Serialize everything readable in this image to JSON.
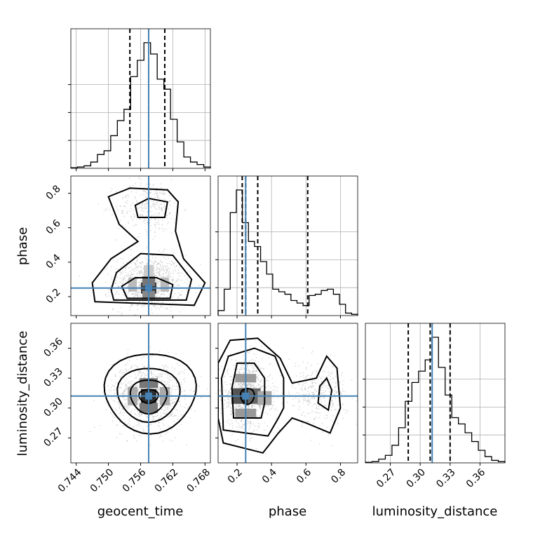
{
  "chart_data": {
    "type": "corner",
    "truth_color": "#4682b4",
    "parameters": [
      {
        "name": "geocent_time",
        "label": "geocent_time",
        "range": [
          0.743,
          0.769
        ],
        "ticks": [
          0.744,
          0.75,
          0.756,
          0.762,
          0.768
        ],
        "tick_labels": [
          "0.744",
          "0.750",
          "0.756",
          "0.762",
          "0.768"
        ],
        "truth": 0.7575,
        "quantiles": [
          0.754,
          0.7575,
          0.7605
        ]
      },
      {
        "name": "phase",
        "label": "phase",
        "range": [
          0.09,
          0.9
        ],
        "ticks": [
          0.2,
          0.4,
          0.6,
          0.8
        ],
        "tick_labels": [
          "0.2",
          "0.4",
          "0.6",
          "0.8"
        ],
        "truth": 0.25,
        "quantiles": [
          0.23,
          0.25,
          0.32,
          0.61
        ]
      },
      {
        "name": "luminosity_distance",
        "label": "luminosity_distance",
        "range": [
          0.245,
          0.385
        ],
        "ticks": [
          0.27,
          0.3,
          0.33,
          0.36
        ],
        "tick_labels": [
          "0.27",
          "0.30",
          "0.33",
          "0.36"
        ],
        "truth": 0.312,
        "quantiles": [
          0.288,
          0.31,
          0.33
        ]
      }
    ],
    "hist_geocent_time": [
      0.005,
      0.01,
      0.02,
      0.05,
      0.11,
      0.14,
      0.26,
      0.38,
      0.47,
      0.73,
      0.86,
      1.0,
      0.91,
      0.71,
      0.63,
      0.39,
      0.21,
      0.09,
      0.05,
      0.03,
      0.01
    ],
    "hist_phase": [
      0.04,
      0.21,
      0.82,
      1.0,
      0.74,
      0.59,
      0.55,
      0.43,
      0.33,
      0.21,
      0.19,
      0.17,
      0.12,
      0.1,
      0.08,
      0.16,
      0.17,
      0.2,
      0.21,
      0.17,
      0.09,
      0.02,
      0.01
    ],
    "hist_luminosity_distance": [
      0.005,
      0.01,
      0.03,
      0.06,
      0.14,
      0.28,
      0.49,
      0.64,
      0.73,
      0.82,
      1.0,
      0.76,
      0.54,
      0.36,
      0.31,
      0.24,
      0.17,
      0.1,
      0.05,
      0.02,
      0.01
    ]
  }
}
